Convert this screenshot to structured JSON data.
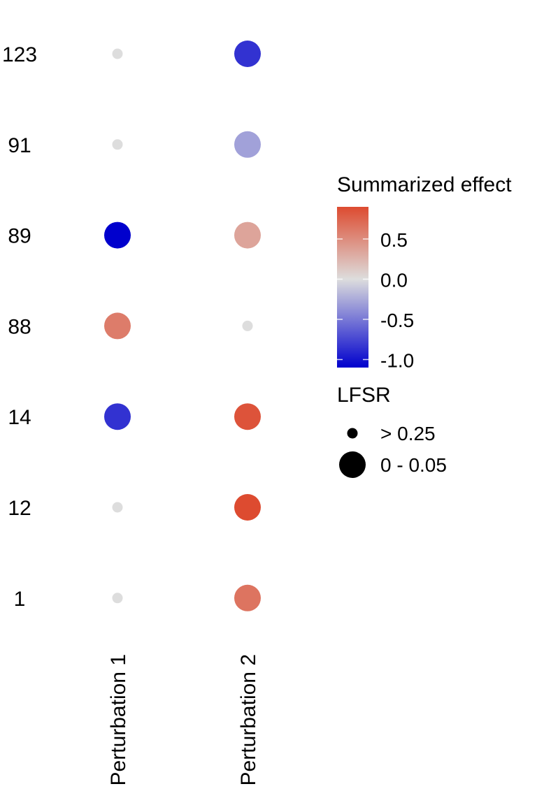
{
  "chart_data": {
    "type": "dot-plot",
    "categories_x": [
      "Perturbation 1",
      "Perturbation 2"
    ],
    "categories_y": [
      "1",
      "12",
      "14",
      "88",
      "89",
      "91",
      "123"
    ],
    "points": [
      {
        "x": "Perturbation 1",
        "y": "123",
        "effect": 0.0,
        "lfsr": "> 0.25"
      },
      {
        "x": "Perturbation 2",
        "y": "123",
        "effect": -0.85,
        "lfsr": "0 - 0.05"
      },
      {
        "x": "Perturbation 1",
        "y": "91",
        "effect": 0.0,
        "lfsr": "> 0.25"
      },
      {
        "x": "Perturbation 2",
        "y": "91",
        "effect": -0.3,
        "lfsr": "0 - 0.05"
      },
      {
        "x": "Perturbation 1",
        "y": "89",
        "effect": -1.1,
        "lfsr": "0 - 0.05"
      },
      {
        "x": "Perturbation 2",
        "y": "89",
        "effect": 0.35,
        "lfsr": "0 - 0.05"
      },
      {
        "x": "Perturbation 1",
        "y": "88",
        "effect": 0.6,
        "lfsr": "0 - 0.05"
      },
      {
        "x": "Perturbation 2",
        "y": "88",
        "effect": 0.0,
        "lfsr": "> 0.25"
      },
      {
        "x": "Perturbation 1",
        "y": "14",
        "effect": -0.85,
        "lfsr": "0 - 0.05"
      },
      {
        "x": "Perturbation 2",
        "y": "14",
        "effect": 0.85,
        "lfsr": "0 - 0.05"
      },
      {
        "x": "Perturbation 1",
        "y": "12",
        "effect": 0.0,
        "lfsr": "> 0.25"
      },
      {
        "x": "Perturbation 2",
        "y": "12",
        "effect": 0.9,
        "lfsr": "0 - 0.05"
      },
      {
        "x": "Perturbation 1",
        "y": "1",
        "effect": 0.0,
        "lfsr": "> 0.25"
      },
      {
        "x": "Perturbation 2",
        "y": "1",
        "effect": 0.65,
        "lfsr": "0 - 0.05"
      }
    ],
    "color_legend": {
      "title": "Summarized effect",
      "ticks": [
        0.5,
        0.0,
        -0.5,
        -1.0
      ],
      "tick_labels": [
        "0.5",
        "0.0",
        "-0.5",
        "-1.0"
      ],
      "range": [
        -1.1,
        0.9
      ],
      "low_color": "#0000CD",
      "mid_color": "#DDDDDD",
      "high_color": "#DD4B30"
    },
    "size_legend": {
      "title": "LFSR",
      "entries": [
        "> 0.25",
        "0 - 0.05"
      ]
    },
    "grid": false,
    "legend_position": "right"
  }
}
